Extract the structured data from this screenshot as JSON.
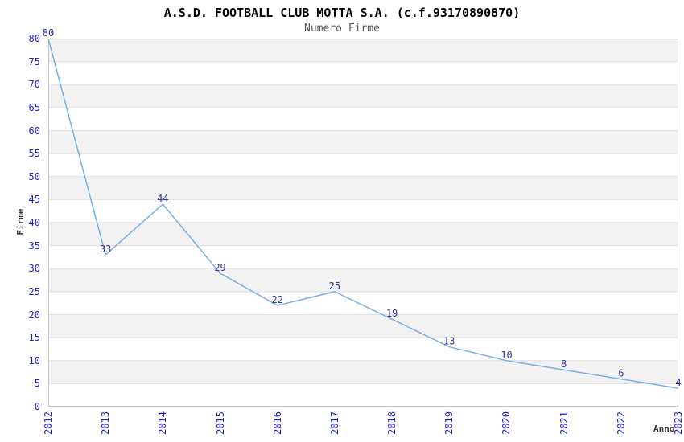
{
  "header": {
    "title": "A.S.D. FOOTBALL CLUB MOTTA S.A. (c.f.93170890870)",
    "subtitle": "Numero Firme"
  },
  "chart_data": {
    "type": "line",
    "title": "A.S.D. FOOTBALL CLUB MOTTA S.A. (c.f.93170890870)",
    "subtitle": "Numero Firme",
    "xlabel": "Anno",
    "ylabel": "Firme",
    "x": [
      2012,
      2013,
      2014,
      2015,
      2016,
      2017,
      2018,
      2019,
      2020,
      2021,
      2022,
      2023
    ],
    "values": [
      80,
      33,
      44,
      29,
      22,
      25,
      19,
      13,
      10,
      8,
      6,
      4
    ],
    "ylim": [
      0,
      80
    ],
    "ytick_step": 5,
    "point_labels_shown": true,
    "legend": "none",
    "grid": "alternating-horizontal-bands",
    "colors": {
      "line": "#7aafe4",
      "tick_label": "#2222cc",
      "point_label": "#333399",
      "band": "#f2f2f2",
      "band_alt": "#ffffff",
      "gridline": "#dedede",
      "plot_border": "#c8c8c8",
      "title": "#000000",
      "subtitle": "#555555",
      "axis_label": "#333333"
    }
  }
}
